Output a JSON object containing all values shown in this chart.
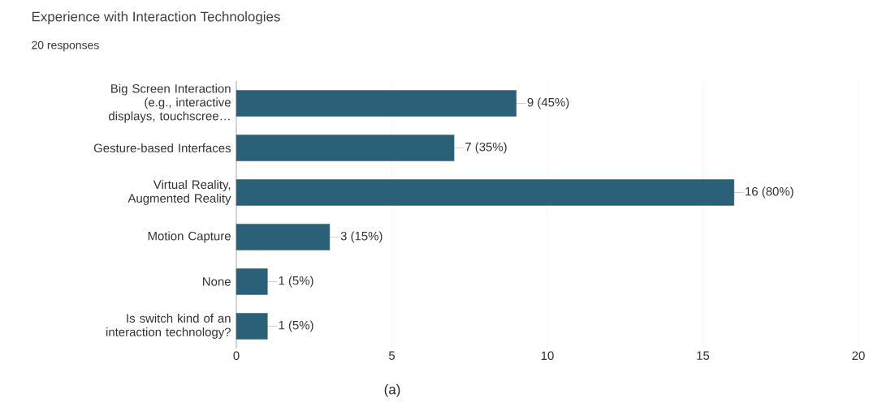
{
  "chart_data": {
    "type": "bar",
    "orientation": "horizontal",
    "title": "Experience with Interaction Technologies",
    "subtitle": "20 responses",
    "categories": [
      "Big Screen Interaction (e.g., interactive displays, touchscree…",
      "Gesture-based Interfaces",
      "Virtual Reality, Augmented Reality",
      "Motion Capture",
      "None",
      "Is switch kind of an interaction technology?"
    ],
    "values": [
      9,
      7,
      16,
      3,
      1,
      1
    ],
    "value_labels": [
      "9 (45%)",
      "7 (35%)",
      "16 (80%)",
      "3 (15%)",
      "1 (5%)",
      "1 (5%)"
    ],
    "color": "#2b6178",
    "xlim": [
      0,
      20
    ],
    "xticks": [
      0,
      5,
      10,
      15,
      20
    ],
    "grid": "x",
    "annotations": [
      "(a)"
    ]
  }
}
